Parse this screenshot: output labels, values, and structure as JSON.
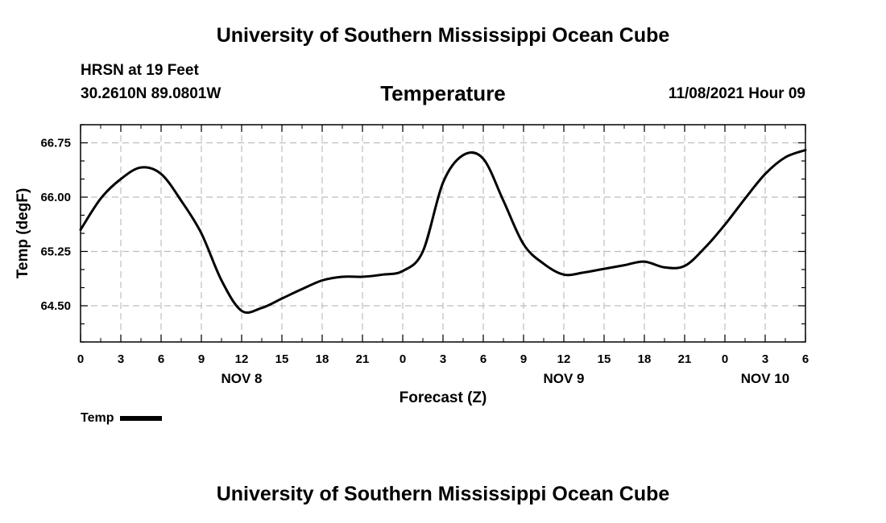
{
  "header": {
    "main_title": "University of Southern Mississippi Ocean Cube",
    "station": "HRSN at 19 Feet",
    "coordinates": "30.2610N  89.0801W",
    "chart_title": "Temperature",
    "datetime": "11/08/2021 Hour 09"
  },
  "footer": {
    "title": "University of Southern Mississippi Ocean Cube"
  },
  "legend": {
    "label": "Temp",
    "color": "#000000"
  },
  "chart_data": {
    "type": "line",
    "title": "Temperature",
    "xlabel": "Forecast (Z)",
    "ylabel": "Temp (degF)",
    "x_unit": "hours since NOV 8 00Z",
    "xlim": [
      0,
      54
    ],
    "ylim": [
      64.0,
      67.0
    ],
    "grid": true,
    "legend_position": "bottom-left",
    "xticks": [
      {
        "x": 0,
        "label": "0"
      },
      {
        "x": 3,
        "label": "3"
      },
      {
        "x": 6,
        "label": "6"
      },
      {
        "x": 9,
        "label": "9"
      },
      {
        "x": 12,
        "label": "12"
      },
      {
        "x": 15,
        "label": "15"
      },
      {
        "x": 18,
        "label": "18"
      },
      {
        "x": 21,
        "label": "21"
      },
      {
        "x": 24,
        "label": "0"
      },
      {
        "x": 27,
        "label": "3"
      },
      {
        "x": 30,
        "label": "6"
      },
      {
        "x": 33,
        "label": "9"
      },
      {
        "x": 36,
        "label": "12"
      },
      {
        "x": 39,
        "label": "15"
      },
      {
        "x": 42,
        "label": "18"
      },
      {
        "x": 45,
        "label": "21"
      },
      {
        "x": 48,
        "label": "0"
      },
      {
        "x": 51,
        "label": "3"
      },
      {
        "x": 54,
        "label": "6"
      }
    ],
    "day_labels": [
      {
        "x": 12,
        "label": "NOV 8"
      },
      {
        "x": 36,
        "label": "NOV 9"
      },
      {
        "x": 51,
        "label": "NOV 10"
      }
    ],
    "yticks": [
      {
        "y": 64.5,
        "label": "64.50"
      },
      {
        "y": 65.25,
        "label": "65.25"
      },
      {
        "y": 66.0,
        "label": "66.00"
      },
      {
        "y": 66.75,
        "label": "66.75"
      }
    ],
    "series": [
      {
        "name": "Temp",
        "x": [
          0,
          1.5,
          3,
          4.5,
          6,
          7.5,
          9,
          10.5,
          12,
          13.5,
          15,
          16.5,
          18,
          19.5,
          21,
          22.5,
          24,
          25.5,
          27,
          28.5,
          30,
          31.5,
          33,
          34.5,
          36,
          37.5,
          39,
          40.5,
          42,
          43.5,
          45,
          46.5,
          48,
          49.5,
          51,
          52.5,
          54
        ],
        "values": [
          65.55,
          65.98,
          66.25,
          66.41,
          66.32,
          65.95,
          65.5,
          64.85,
          64.43,
          64.47,
          64.6,
          64.73,
          64.85,
          64.9,
          64.9,
          64.93,
          64.98,
          65.25,
          66.2,
          66.58,
          66.53,
          65.95,
          65.35,
          65.08,
          64.93,
          64.96,
          65.01,
          65.06,
          65.11,
          65.03,
          65.05,
          65.3,
          65.62,
          65.98,
          66.32,
          66.55,
          66.65
        ]
      }
    ]
  }
}
